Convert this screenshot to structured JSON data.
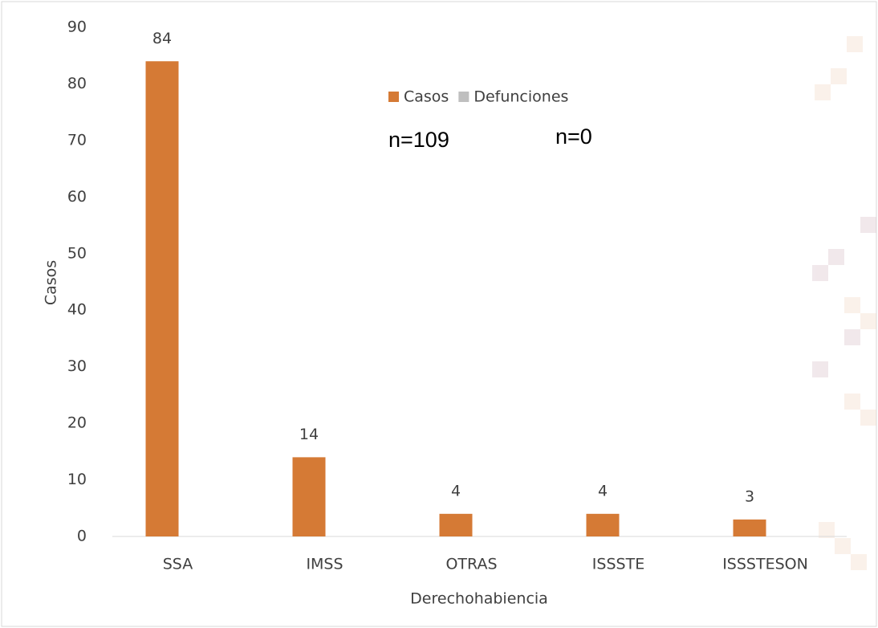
{
  "chart_data": {
    "type": "bar",
    "categories": [
      "SSA",
      "IMSS",
      "OTRAS",
      "ISSSTE",
      "ISSSTESON"
    ],
    "series": [
      {
        "name": "Casos",
        "color": "#d57a35",
        "values": [
          84,
          14,
          4,
          4,
          3
        ],
        "labels": true
      },
      {
        "name": "Defunciones",
        "color": "#bfbfbf",
        "values": [
          0,
          0,
          0,
          0,
          0
        ],
        "labels": false
      }
    ],
    "ylim": [
      0,
      90
    ],
    "yticks": [
      0,
      10,
      20,
      30,
      40,
      50,
      60,
      70,
      80,
      90
    ],
    "y_label": "Casos",
    "x_label": "Derechohabiencia",
    "annotations": [
      "n=109",
      "n=0"
    ]
  }
}
